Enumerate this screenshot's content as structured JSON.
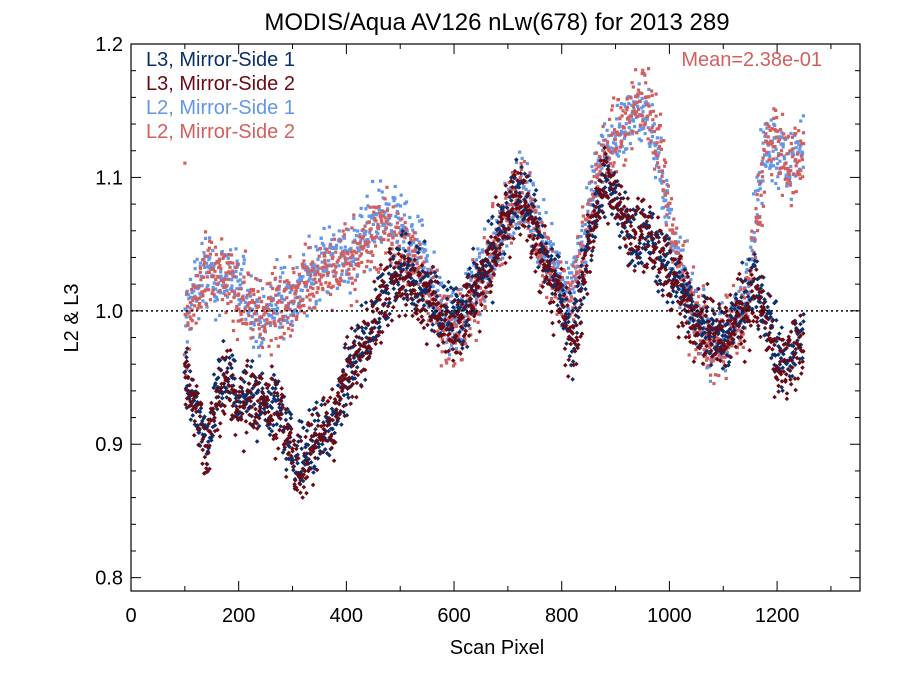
{
  "chart_data": {
    "type": "scatter",
    "title": "MODIS/Aqua AV126 nLw(678) for 2013 289",
    "xlabel": "Scan Pixel",
    "ylabel": "L2 & L3",
    "xlim": [
      0,
      1354
    ],
    "ylim": [
      0.79,
      1.2
    ],
    "xticks": [
      0,
      200,
      400,
      600,
      800,
      1000,
      1200
    ],
    "yticks": [
      0.8,
      0.9,
      1.0,
      1.1,
      1.2
    ],
    "xtick_labels": [
      "0",
      "200",
      "400",
      "600",
      "800",
      "1000",
      "1200"
    ],
    "ytick_labels": [
      "0.8",
      "0.9",
      "1.0",
      "1.1",
      "1.2"
    ],
    "reference_line": {
      "y": 1.0,
      "style": "dotted"
    },
    "annotation": {
      "text": "Mean=2.38e-01",
      "color": "#d25f5f",
      "placement": "top-right"
    },
    "legend_placement": "top-left",
    "series": [
      {
        "name": "L3, Mirror-Side 1",
        "color": "#0b2f6b",
        "marker": "diamond",
        "profile": [
          [
            100,
            0.95
          ],
          [
            120,
            0.93
          ],
          [
            140,
            0.9
          ],
          [
            160,
            0.94
          ],
          [
            180,
            0.95
          ],
          [
            200,
            0.93
          ],
          [
            220,
            0.94
          ],
          [
            240,
            0.93
          ],
          [
            260,
            0.93
          ],
          [
            280,
            0.92
          ],
          [
            300,
            0.89
          ],
          [
            320,
            0.89
          ],
          [
            340,
            0.9
          ],
          [
            360,
            0.91
          ],
          [
            380,
            0.92
          ],
          [
            400,
            0.95
          ],
          [
            420,
            0.97
          ],
          [
            440,
            0.98
          ],
          [
            460,
            1.0
          ],
          [
            480,
            1.02
          ],
          [
            500,
            1.03
          ],
          [
            520,
            1.03
          ],
          [
            540,
            1.02
          ],
          [
            560,
            1.01
          ],
          [
            580,
            1.0
          ],
          [
            600,
            1.0
          ],
          [
            620,
            1.0
          ],
          [
            640,
            1.02
          ],
          [
            660,
            1.03
          ],
          [
            680,
            1.05
          ],
          [
            700,
            1.07
          ],
          [
            720,
            1.09
          ],
          [
            740,
            1.08
          ],
          [
            760,
            1.05
          ],
          [
            780,
            1.03
          ],
          [
            800,
            1.01
          ],
          [
            820,
            0.98
          ],
          [
            840,
            1.03
          ],
          [
            860,
            1.07
          ],
          [
            880,
            1.1
          ],
          [
            900,
            1.08
          ],
          [
            920,
            1.06
          ],
          [
            940,
            1.05
          ],
          [
            960,
            1.06
          ],
          [
            980,
            1.04
          ],
          [
            1000,
            1.03
          ],
          [
            1020,
            1.02
          ],
          [
            1040,
            1.0
          ],
          [
            1060,
            0.99
          ],
          [
            1080,
            0.99
          ],
          [
            1100,
            0.98
          ],
          [
            1120,
            0.99
          ],
          [
            1140,
            1.01
          ],
          [
            1160,
            1.02
          ],
          [
            1180,
            1.0
          ],
          [
            1200,
            0.97
          ],
          [
            1220,
            0.96
          ],
          [
            1240,
            0.98
          ],
          [
            1250,
            0.98
          ]
        ],
        "spread": 0.018
      },
      {
        "name": "L3, Mirror-Side 2",
        "color": "#6b0a14",
        "marker": "diamond",
        "profile": [
          [
            100,
            0.95
          ],
          [
            120,
            0.93
          ],
          [
            140,
            0.9
          ],
          [
            160,
            0.93
          ],
          [
            180,
            0.95
          ],
          [
            200,
            0.92
          ],
          [
            220,
            0.94
          ],
          [
            240,
            0.93
          ],
          [
            260,
            0.93
          ],
          [
            280,
            0.92
          ],
          [
            300,
            0.89
          ],
          [
            320,
            0.88
          ],
          [
            340,
            0.9
          ],
          [
            360,
            0.91
          ],
          [
            380,
            0.92
          ],
          [
            400,
            0.95
          ],
          [
            420,
            0.96
          ],
          [
            440,
            0.98
          ],
          [
            460,
            1.0
          ],
          [
            480,
            1.02
          ],
          [
            500,
            1.02
          ],
          [
            520,
            1.02
          ],
          [
            540,
            1.01
          ],
          [
            560,
            1.0
          ],
          [
            580,
            0.99
          ],
          [
            600,
            0.99
          ],
          [
            620,
            1.0
          ],
          [
            640,
            1.01
          ],
          [
            660,
            1.03
          ],
          [
            680,
            1.05
          ],
          [
            700,
            1.07
          ],
          [
            720,
            1.09
          ],
          [
            740,
            1.07
          ],
          [
            760,
            1.04
          ],
          [
            780,
            1.02
          ],
          [
            800,
            1.0
          ],
          [
            820,
            0.97
          ],
          [
            840,
            1.02
          ],
          [
            860,
            1.07
          ],
          [
            880,
            1.1
          ],
          [
            900,
            1.09
          ],
          [
            920,
            1.06
          ],
          [
            940,
            1.06
          ],
          [
            960,
            1.06
          ],
          [
            980,
            1.04
          ],
          [
            1000,
            1.03
          ],
          [
            1020,
            1.01
          ],
          [
            1040,
            1.0
          ],
          [
            1060,
            0.99
          ],
          [
            1080,
            0.99
          ],
          [
            1100,
            0.98
          ],
          [
            1120,
            0.99
          ],
          [
            1140,
            1.0
          ],
          [
            1160,
            1.01
          ],
          [
            1180,
            0.99
          ],
          [
            1200,
            0.96
          ],
          [
            1220,
            0.96
          ],
          [
            1240,
            0.97
          ],
          [
            1250,
            0.97
          ]
        ],
        "spread": 0.02
      },
      {
        "name": "L2, Mirror-Side 1",
        "color": "#6496e6",
        "marker": "square",
        "profile": [
          [
            100,
            0.99
          ],
          [
            120,
            1.02
          ],
          [
            140,
            1.03
          ],
          [
            160,
            1.02
          ],
          [
            180,
            1.03
          ],
          [
            200,
            1.02
          ],
          [
            220,
            1.01
          ],
          [
            240,
            0.99
          ],
          [
            260,
            1.0
          ],
          [
            280,
            1.01
          ],
          [
            300,
            1.01
          ],
          [
            320,
            1.02
          ],
          [
            340,
            1.03
          ],
          [
            360,
            1.04
          ],
          [
            380,
            1.04
          ],
          [
            400,
            1.04
          ],
          [
            420,
            1.05
          ],
          [
            440,
            1.06
          ],
          [
            460,
            1.07
          ],
          [
            480,
            1.07
          ],
          [
            500,
            1.06
          ],
          [
            520,
            1.05
          ],
          [
            540,
            1.04
          ],
          [
            560,
            1.02
          ],
          [
            580,
            1.0
          ],
          [
            600,
            0.99
          ],
          [
            620,
            1.0
          ],
          [
            640,
            1.02
          ],
          [
            660,
            1.03
          ],
          [
            680,
            1.05
          ],
          [
            700,
            1.07
          ],
          [
            720,
            1.09
          ],
          [
            740,
            1.08
          ],
          [
            760,
            1.06
          ],
          [
            780,
            1.04
          ],
          [
            800,
            1.02
          ],
          [
            820,
            1.02
          ],
          [
            840,
            1.05
          ],
          [
            860,
            1.1
          ],
          [
            880,
            1.12
          ],
          [
            900,
            1.13
          ],
          [
            920,
            1.14
          ],
          [
            940,
            1.15
          ],
          [
            960,
            1.14
          ],
          [
            980,
            1.12
          ],
          [
            1000,
            1.06
          ],
          [
            1020,
            1.03
          ],
          [
            1040,
            1.01
          ],
          [
            1060,
            0.99
          ],
          [
            1080,
            0.97
          ],
          [
            1100,
            0.98
          ],
          [
            1120,
            0.99
          ],
          [
            1140,
            1.01
          ],
          [
            1160,
            1.07
          ],
          [
            1180,
            1.13
          ],
          [
            1200,
            1.12
          ],
          [
            1220,
            1.11
          ],
          [
            1240,
            1.12
          ],
          [
            1250,
            1.12
          ]
        ],
        "spread": 0.018
      },
      {
        "name": "L2, Mirror-Side 2",
        "color": "#d25f5f",
        "marker": "square",
        "profile": [
          [
            100,
            0.98
          ],
          [
            120,
            1.01
          ],
          [
            140,
            1.02
          ],
          [
            160,
            1.03
          ],
          [
            180,
            1.02
          ],
          [
            200,
            1.01
          ],
          [
            220,
            1.01
          ],
          [
            240,
            0.99
          ],
          [
            260,
            1.0
          ],
          [
            280,
            1.0
          ],
          [
            300,
            1.01
          ],
          [
            320,
            1.02
          ],
          [
            340,
            1.02
          ],
          [
            360,
            1.03
          ],
          [
            380,
            1.03
          ],
          [
            400,
            1.04
          ],
          [
            420,
            1.04
          ],
          [
            440,
            1.05
          ],
          [
            460,
            1.06
          ],
          [
            480,
            1.06
          ],
          [
            500,
            1.05
          ],
          [
            520,
            1.04
          ],
          [
            540,
            1.03
          ],
          [
            560,
            1.01
          ],
          [
            580,
            0.99
          ],
          [
            600,
            0.98
          ],
          [
            620,
            0.99
          ],
          [
            640,
            1.01
          ],
          [
            660,
            1.03
          ],
          [
            680,
            1.05
          ],
          [
            700,
            1.07
          ],
          [
            720,
            1.09
          ],
          [
            740,
            1.08
          ],
          [
            760,
            1.05
          ],
          [
            780,
            1.03
          ],
          [
            800,
            1.01
          ],
          [
            820,
            1.01
          ],
          [
            840,
            1.05
          ],
          [
            860,
            1.09
          ],
          [
            880,
            1.12
          ],
          [
            900,
            1.13
          ],
          [
            920,
            1.14
          ],
          [
            940,
            1.16
          ],
          [
            960,
            1.15
          ],
          [
            980,
            1.13
          ],
          [
            1000,
            1.07
          ],
          [
            1020,
            1.03
          ],
          [
            1040,
            1.0
          ],
          [
            1060,
            0.99
          ],
          [
            1080,
            0.97
          ],
          [
            1100,
            0.98
          ],
          [
            1120,
            0.99
          ],
          [
            1140,
            1.0
          ],
          [
            1160,
            1.06
          ],
          [
            1180,
            1.12
          ],
          [
            1200,
            1.13
          ],
          [
            1220,
            1.11
          ],
          [
            1240,
            1.12
          ],
          [
            1250,
            1.11
          ]
        ],
        "spread": 0.02
      }
    ]
  }
}
